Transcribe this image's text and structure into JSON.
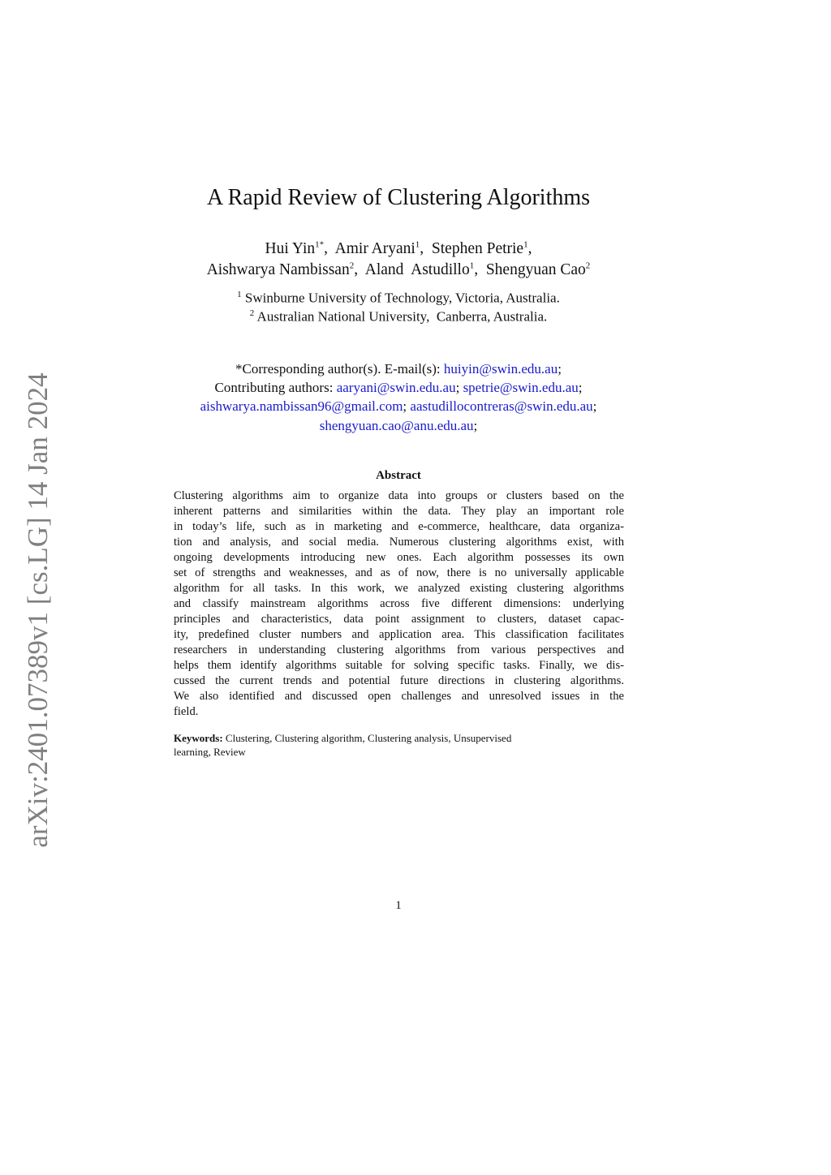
{
  "sidebar_stamp": "arXiv:2401.07389v1  [cs.LG]  14 Jan 2024",
  "title": "A Rapid Review of Clustering Algorithms",
  "authors_line1": [
    {
      "name": "Hui Yin",
      "sup": "1*"
    },
    {
      "name": "Amir Aryani",
      "sup": "1"
    },
    {
      "name": "Stephen Petrie",
      "sup": "1"
    }
  ],
  "authors_line2": [
    {
      "name": "Aishwarya Nambissan",
      "sup": "2"
    },
    {
      "name": "Aland  Astudillo",
      "sup": "1"
    },
    {
      "name": "Shengyuan Cao",
      "sup": "2"
    }
  ],
  "affiliations": [
    {
      "sup": "1",
      "text": "Swinburne University of Technology, Victoria, Australia."
    },
    {
      "sup": "2",
      "text": "Australian National University,  Canberra, Australia."
    }
  ],
  "corresponding": {
    "label": "*Corresponding author(s). E-mail(s):",
    "email": "huiyin@swin.edu.au"
  },
  "contributing": {
    "label": "Contributing authors:",
    "emails": [
      "aaryani@swin.edu.au",
      "spetrie@swin.edu.au",
      "aishwarya.nambissan96@gmail.com",
      "aastudillocontreras@swin.edu.au",
      "shengyuan.cao@anu.edu.au"
    ]
  },
  "abstract": {
    "heading": "Abstract",
    "lines": [
      "Clustering algorithms aim to organize data into groups or clusters based on the",
      "inherent patterns and similarities within the data. They play an important role",
      "in today’s life, such as in marketing and e-commerce, healthcare, data organiza-",
      "tion and analysis, and social media. Numerous clustering algorithms exist, with",
      "ongoing developments introducing new ones. Each algorithm possesses its own",
      "set of strengths and weaknesses, and as of now, there is no universally applicable",
      "algorithm for all tasks. In this work, we analyzed existing clustering algorithms",
      "and classify mainstream algorithms across five different dimensions: underlying",
      "principles and characteristics, data point assignment to clusters, dataset capac-",
      "ity, predefined cluster numbers and application area. This classification facilitates",
      "researchers in understanding clustering algorithms from various perspectives and",
      "helps them identify algorithms suitable for solving specific tasks. Finally, we dis-",
      "cussed the current trends and potential future directions in clustering algorithms.",
      "We also identified and discussed open challenges and unresolved issues in the",
      "field."
    ]
  },
  "keywords": {
    "label": "Keywords:",
    "line1": "Clustering, Clustering algorithm, Clustering analysis, Unsupervised",
    "line2": "learning, Review"
  },
  "page_number": "1",
  "colors": {
    "link": "#1a1acc",
    "stamp": "#808080"
  }
}
